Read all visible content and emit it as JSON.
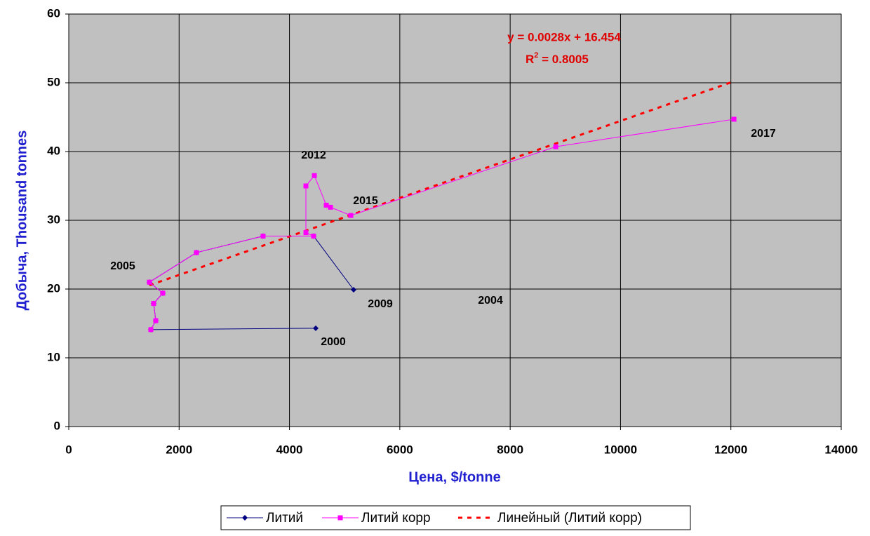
{
  "chart_data": {
    "type": "scatter",
    "x_label": "Цена, $/tonne",
    "y_label": "Добыча, Thousand tonnes",
    "xlim": [
      0,
      14000
    ],
    "xticks": [
      0,
      2000,
      4000,
      6000,
      8000,
      10000,
      12000,
      14000
    ],
    "ylim": [
      0,
      60
    ],
    "yticks": [
      0,
      10,
      20,
      30,
      40,
      50,
      60
    ],
    "grid": true,
    "legend": "bottom",
    "series": [
      {
        "name": "Литий",
        "color": "#000080",
        "marker": "diamond",
        "x": [
          4476,
          1488,
          1577,
          1539,
          1704,
          1462,
          2314,
          3522,
          4438,
          5163
        ],
        "values": [
          14.3,
          14.1,
          15.4,
          17.9,
          19.4,
          21.0,
          25.3,
          27.7,
          27.7,
          19.9
        ]
      },
      {
        "name": "Литий корр",
        "color": "#ff00ff",
        "marker": "square",
        "x": [
          1488,
          1577,
          1539,
          1704,
          1462,
          2314,
          3522,
          4438,
          4298,
          4298,
          4451,
          4667,
          4743,
          5112,
          8826,
          12056
        ],
        "values": [
          14.1,
          15.4,
          17.9,
          19.4,
          21.0,
          25.3,
          27.7,
          27.7,
          28.2,
          35.0,
          36.5,
          32.2,
          31.9,
          30.7,
          40.7,
          44.7
        ]
      }
    ],
    "trendline": {
      "name": "Линейный (Литий корр)",
      "color": "#ff0000",
      "slope": 0.0028,
      "intercept": 16.454,
      "equation": "y = 0.0028x + 16.454",
      "r2_base": "R",
      "r2_sup": "2",
      "r2_rest": " = 0.8005"
    },
    "annotations": [
      "2005",
      "2012",
      "2015",
      "2017",
      "2009",
      "2004",
      "2000"
    ]
  }
}
